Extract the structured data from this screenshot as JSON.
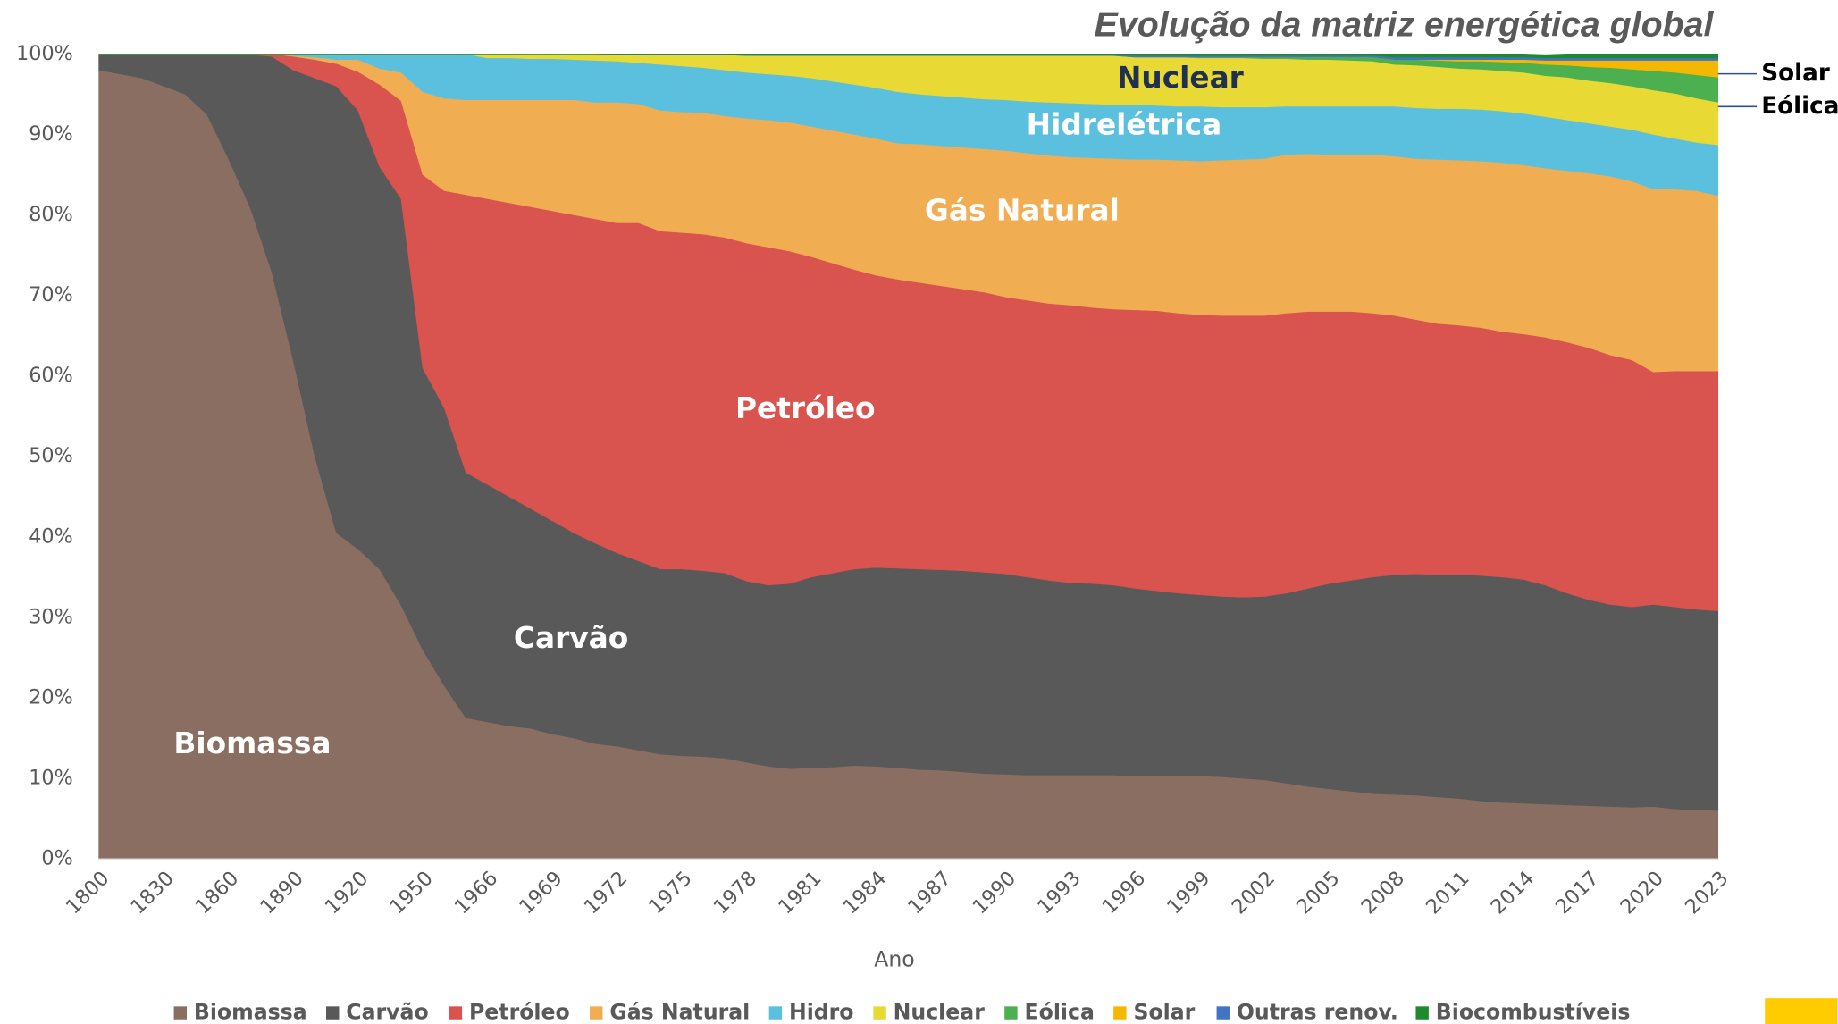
{
  "chart_data": {
    "type": "stacked_area",
    "title": "Evolução da matriz energética global",
    "x_label": "Ano",
    "categories": [
      "1800",
      null,
      null,
      "1830",
      null,
      null,
      "1860",
      null,
      null,
      "1890",
      null,
      null,
      "1920",
      null,
      null,
      "1950",
      null,
      null,
      "1966",
      null,
      null,
      "1969",
      null,
      null,
      "1972",
      null,
      null,
      "1975",
      null,
      null,
      "1978",
      null,
      null,
      "1981",
      null,
      null,
      "1984",
      null,
      null,
      "1987",
      null,
      null,
      "1990",
      null,
      null,
      "1993",
      null,
      null,
      "1996",
      null,
      null,
      "1999",
      null,
      null,
      "2002",
      null,
      null,
      "2005",
      null,
      null,
      "2008",
      null,
      null,
      "2011",
      null,
      null,
      "2014",
      null,
      null,
      "2017",
      null,
      null,
      "2020",
      null,
      null,
      "2023"
    ],
    "series": [
      {
        "name": "Biomassa",
        "color": "#8b6e62",
        "values": [
          98,
          97.5,
          97,
          96,
          95,
          92.5,
          87,
          81,
          73,
          62,
          50,
          40.5,
          38.5,
          36,
          31.5,
          26,
          21.5,
          17.5,
          17,
          16.5,
          16.2,
          15.5,
          15,
          14.3,
          14,
          13.5,
          13,
          12.8,
          12.7,
          12.5,
          12,
          11.5,
          11.2,
          11.3,
          11.4,
          11.6,
          11.5,
          11.3,
          11.1,
          11,
          10.8,
          10.6,
          10.5,
          10.4,
          10.4,
          10.4,
          10.4,
          10.4,
          10.3,
          10.3,
          10.3,
          10.3,
          10.2,
          10,
          9.8,
          9.4,
          9,
          8.7,
          8.4,
          8.1,
          8,
          7.9,
          7.7,
          7.5,
          7.2,
          7,
          6.9,
          6.8,
          6.7,
          6.6,
          6.5,
          6.4,
          6.5,
          6.2,
          6.1,
          6
        ]
      },
      {
        "name": "Carvão",
        "color": "#595959",
        "values": [
          2,
          2.5,
          3,
          4,
          5,
          7.5,
          13,
          18.9,
          26.7,
          36,
          47,
          55.5,
          54.5,
          50,
          50.5,
          35,
          34.5,
          30.5,
          29.5,
          28.5,
          27.3,
          26.5,
          25.5,
          24.9,
          24,
          23.5,
          23,
          23.2,
          23.1,
          23,
          22.5,
          22.5,
          23,
          23.7,
          24.1,
          24.4,
          24.7,
          24.8,
          24.9,
          24.9,
          25,
          25,
          24.9,
          24.6,
          24.2,
          23.9,
          23.8,
          23.6,
          23.3,
          23,
          22.7,
          22.5,
          22.4,
          22.5,
          22.8,
          23.6,
          24.6,
          25.5,
          26.2,
          26.9,
          27.3,
          27.5,
          27.6,
          27.8,
          28,
          28,
          27.8,
          27.2,
          26.3,
          25.6,
          25.1,
          24.9,
          25.1,
          25.1,
          24.9,
          24.8
        ]
      },
      {
        "name": "Petróleo",
        "color": "#d9534f",
        "values": [
          0,
          0,
          0,
          0,
          0,
          0,
          0,
          0.1,
          0.3,
          1.7,
          2.3,
          2.8,
          4.8,
          10.2,
          12.2,
          24,
          27,
          34.5,
          35.5,
          36.5,
          37.5,
          38.5,
          39.5,
          40.3,
          41,
          42,
          42,
          41.8,
          41.8,
          41.7,
          42,
          42,
          41.3,
          39.8,
          38.5,
          37.2,
          36.3,
          35.9,
          35.6,
          35.3,
          35,
          34.8,
          34.4,
          34.4,
          34.4,
          34.5,
          34.3,
          34.3,
          34.6,
          34.8,
          34.8,
          34.8,
          34.9,
          35,
          34.9,
          34.8,
          34.4,
          33.8,
          33.4,
          32.8,
          32.2,
          31.6,
          31.2,
          31,
          30.8,
          30.5,
          30.5,
          30.8,
          31.2,
          31.3,
          31,
          30.7,
          28.9,
          29.3,
          29.6,
          29.8
        ]
      },
      {
        "name": "Gás Natural",
        "color": "#f0ad52",
        "values": [
          0,
          0,
          0,
          0,
          0,
          0,
          0,
          0,
          0,
          0.1,
          0.3,
          0.5,
          1.5,
          2,
          3.5,
          10.3,
          11.5,
          11.8,
          12.3,
          12.8,
          13.3,
          13.8,
          14.3,
          14.5,
          15,
          14.8,
          15,
          15,
          15.1,
          15.1,
          15.5,
          15.8,
          16,
          16.2,
          16.5,
          16.8,
          17,
          16.9,
          17.2,
          17.4,
          17.6,
          17.8,
          18.2,
          18.3,
          18.4,
          18.4,
          18.6,
          18.7,
          18.7,
          18.8,
          19,
          19.1,
          19.3,
          19.4,
          19.5,
          19.7,
          19.6,
          19.5,
          19.5,
          19.7,
          19.8,
          20,
          20.4,
          20.5,
          20.7,
          21,
          21,
          21,
          21.3,
          21.7,
          22.2,
          22.2,
          22.7,
          22.6,
          22.4,
          21.8
        ]
      },
      {
        "name": "Hidro",
        "color": "#5bc0de",
        "values": [
          0,
          0,
          0,
          0,
          0,
          0,
          0,
          0,
          0,
          0.2,
          0.4,
          0.7,
          0.7,
          1.8,
          2.3,
          4.7,
          5.5,
          5.7,
          5.2,
          5.2,
          5.1,
          5.1,
          5,
          5.2,
          5.1,
          5.1,
          5.7,
          5.7,
          5.6,
          5.7,
          5.7,
          5.7,
          5.8,
          6,
          6.1,
          6.2,
          6.3,
          6.4,
          6.2,
          6.2,
          6.2,
          6.2,
          6.3,
          6.4,
          6.6,
          6.7,
          6.7,
          6.7,
          6.8,
          6.7,
          6.7,
          6.8,
          6.6,
          6.5,
          6.4,
          6,
          5.9,
          6,
          6,
          6,
          6.2,
          6.3,
          6.3,
          6.4,
          6.4,
          6.4,
          6.4,
          6.4,
          6.3,
          6.2,
          6.2,
          6.4,
          6.8,
          6.3,
          6,
          6.3
        ]
      },
      {
        "name": "Nuclear",
        "color": "#e8d935",
        "values": [
          0,
          0,
          0,
          0,
          0,
          0,
          0,
          0,
          0,
          0,
          0,
          0,
          0,
          0,
          0,
          0,
          0,
          0,
          0.5,
          0.5,
          0.6,
          0.6,
          0.7,
          0.8,
          0.8,
          1,
          1.2,
          1.4,
          1.6,
          1.9,
          2.1,
          2.3,
          2.5,
          2.8,
          3.2,
          3.6,
          4,
          4.5,
          4.8,
          5,
          5.2,
          5.4,
          5.5,
          5.7,
          5.8,
          5.9,
          6,
          6.1,
          5.9,
          6,
          6.1,
          6,
          6.1,
          6.1,
          6,
          5.9,
          5.8,
          5.8,
          5.7,
          5.6,
          5.2,
          5.3,
          5.2,
          5,
          5,
          5,
          5.1,
          5.1,
          5.3,
          5.3,
          5.4,
          5.4,
          5.5,
          5.6,
          5.5,
          5.3
        ]
      },
      {
        "name": "Eólica",
        "color": "#4caf50",
        "values": [
          0,
          0,
          0,
          0,
          0,
          0,
          0,
          0,
          0,
          0,
          0,
          0,
          0,
          0,
          0,
          0,
          0,
          0,
          0,
          0,
          0,
          0,
          0,
          0,
          0,
          0,
          0,
          0,
          0,
          0,
          0,
          0,
          0,
          0,
          0,
          0,
          0,
          0,
          0,
          0,
          0,
          0,
          0,
          0,
          0,
          0,
          0,
          0,
          0,
          0,
          0,
          0.1,
          0.1,
          0.1,
          0.2,
          0.2,
          0.3,
          0.3,
          0.4,
          0.5,
          0.6,
          0.7,
          0.8,
          0.9,
          1,
          1.1,
          1.2,
          1.4,
          1.5,
          1.7,
          1.9,
          2.1,
          2.4,
          2.6,
          2.9,
          3.1
        ]
      },
      {
        "name": "Solar",
        "color": "#f5b800",
        "values": [
          0,
          0,
          0,
          0,
          0,
          0,
          0,
          0,
          0,
          0,
          0,
          0,
          0,
          0,
          0,
          0,
          0,
          0,
          0,
          0,
          0,
          0,
          0,
          0,
          0,
          0,
          0,
          0,
          0,
          0,
          0,
          0,
          0,
          0,
          0,
          0,
          0,
          0,
          0,
          0,
          0,
          0,
          0,
          0,
          0,
          0,
          0,
          0,
          0,
          0,
          0,
          0,
          0,
          0,
          0,
          0,
          0,
          0,
          0,
          0,
          0,
          0,
          0.1,
          0.2,
          0.2,
          0.3,
          0.4,
          0.5,
          0.6,
          0.8,
          0.9,
          1.1,
          1.3,
          1.5,
          1.8,
          2.1
        ]
      },
      {
        "name": "Outras renov.",
        "color": "#4472c4",
        "values": [
          0,
          0,
          0,
          0,
          0,
          0,
          0,
          0,
          0,
          0,
          0,
          0,
          0,
          0,
          0,
          0,
          0,
          0,
          0,
          0,
          0,
          0,
          0,
          0,
          0.1,
          0.1,
          0.1,
          0.1,
          0.1,
          0.1,
          0.1,
          0.1,
          0.1,
          0.1,
          0.1,
          0.1,
          0.1,
          0.1,
          0.1,
          0.1,
          0.1,
          0.1,
          0.1,
          0.1,
          0.1,
          0.1,
          0.1,
          0.1,
          0.2,
          0.2,
          0.2,
          0.2,
          0.2,
          0.2,
          0.2,
          0.2,
          0.2,
          0.2,
          0.2,
          0.2,
          0.3,
          0.3,
          0.3,
          0.3,
          0.3,
          0.3,
          0.3,
          0.3,
          0.3,
          0.3,
          0.3,
          0.3,
          0.3,
          0.3,
          0.3,
          0.3
        ]
      },
      {
        "name": "Biocombustíveis",
        "color": "#1e8a2e",
        "values": [
          0,
          0,
          0,
          0,
          0,
          0,
          0,
          0,
          0,
          0,
          0,
          0,
          0,
          0,
          0,
          0,
          0,
          0,
          0,
          0,
          0,
          0,
          0,
          0,
          0,
          0,
          0,
          0,
          0,
          0,
          0.1,
          0.1,
          0.1,
          0.1,
          0.1,
          0.1,
          0.1,
          0.1,
          0.1,
          0.1,
          0.1,
          0.1,
          0.1,
          0.1,
          0.1,
          0.1,
          0.1,
          0.1,
          0.2,
          0.2,
          0.2,
          0.2,
          0.2,
          0.2,
          0.2,
          0.2,
          0.2,
          0.2,
          0.2,
          0.2,
          0.4,
          0.4,
          0.4,
          0.4,
          0.4,
          0.4,
          0.4,
          0.4,
          0.5,
          0.5,
          0.5,
          0.5,
          0.5,
          0.5,
          0.5,
          0.5
        ]
      }
    ],
    "ylim": [
      0,
      100
    ],
    "yticks": [
      {
        "value": 0,
        "label": "0%"
      },
      {
        "value": 10,
        "label": "10%"
      },
      {
        "value": 20,
        "label": "20%"
      },
      {
        "value": 30,
        "label": "30%"
      },
      {
        "value": 40,
        "label": "40%"
      },
      {
        "value": 50,
        "label": "50%"
      },
      {
        "value": 60,
        "label": "60%"
      },
      {
        "value": 70,
        "label": "70%"
      },
      {
        "value": 80,
        "label": "80%"
      },
      {
        "value": 90,
        "label": "90%"
      },
      {
        "value": 100,
        "label": "100%"
      }
    ],
    "grid": false,
    "legend": "bottom",
    "annotations": [
      "Biomassa",
      "Carvão",
      "Petróleo",
      "Gás Natural",
      "Hidrelétrica",
      "Nuclear",
      "Solar",
      "Eólica"
    ]
  }
}
